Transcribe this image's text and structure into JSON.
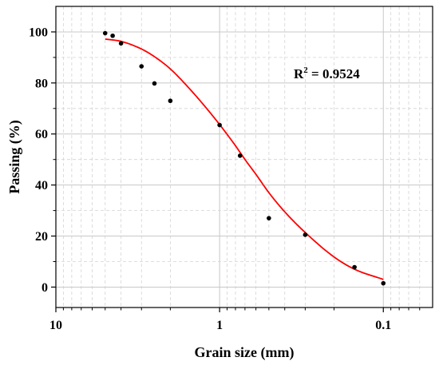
{
  "chart_data": {
    "type": "scatter",
    "title": "",
    "xlabel": "Grain size (mm)",
    "ylabel": "Passing (%)",
    "x_scale": "log",
    "x_reversed": true,
    "xlim": [
      10,
      0.05
    ],
    "ylim": [
      -8,
      110
    ],
    "grid": "on",
    "legend": "none",
    "x_ticks": [
      {
        "value": 10,
        "label": "10"
      },
      {
        "value": 1,
        "label": "1"
      },
      {
        "value": 0.1,
        "label": "0.1"
      }
    ],
    "y_ticks": [
      {
        "value": 0,
        "label": "0"
      },
      {
        "value": 20,
        "label": "20"
      },
      {
        "value": 40,
        "label": "40"
      },
      {
        "value": 60,
        "label": "60"
      },
      {
        "value": 80,
        "label": "80"
      },
      {
        "value": 100,
        "label": "100"
      }
    ],
    "annotation": {
      "r2_prefix": "R",
      "r2_sup": "2",
      "r2_suffix": " = 0.9524"
    },
    "series": [
      {
        "kind": "scatter",
        "color": "#000000",
        "x": [
          5,
          4.5,
          4,
          3,
          2.5,
          2,
          1,
          0.75,
          0.5,
          0.3,
          0.15,
          0.1
        ],
        "y": [
          99.5,
          98.5,
          95.5,
          86.5,
          79.8,
          73,
          63.5,
          51.5,
          27,
          20.5,
          7.8,
          1.5
        ]
      },
      {
        "kind": "fit-curve",
        "color": "#ff0000",
        "x": [
          5,
          4,
          3,
          2.5,
          2,
          1.5,
          1.2,
          1,
          0.8,
          0.7,
          0.6,
          0.5,
          0.4,
          0.3,
          0.2,
          0.15,
          0.1
        ],
        "y": [
          97.2,
          96.3,
          93.3,
          90.3,
          85.5,
          77.2,
          70,
          63.7,
          55.4,
          50,
          44.2,
          37,
          29.5,
          21.4,
          11.8,
          7,
          3
        ]
      }
    ]
  }
}
